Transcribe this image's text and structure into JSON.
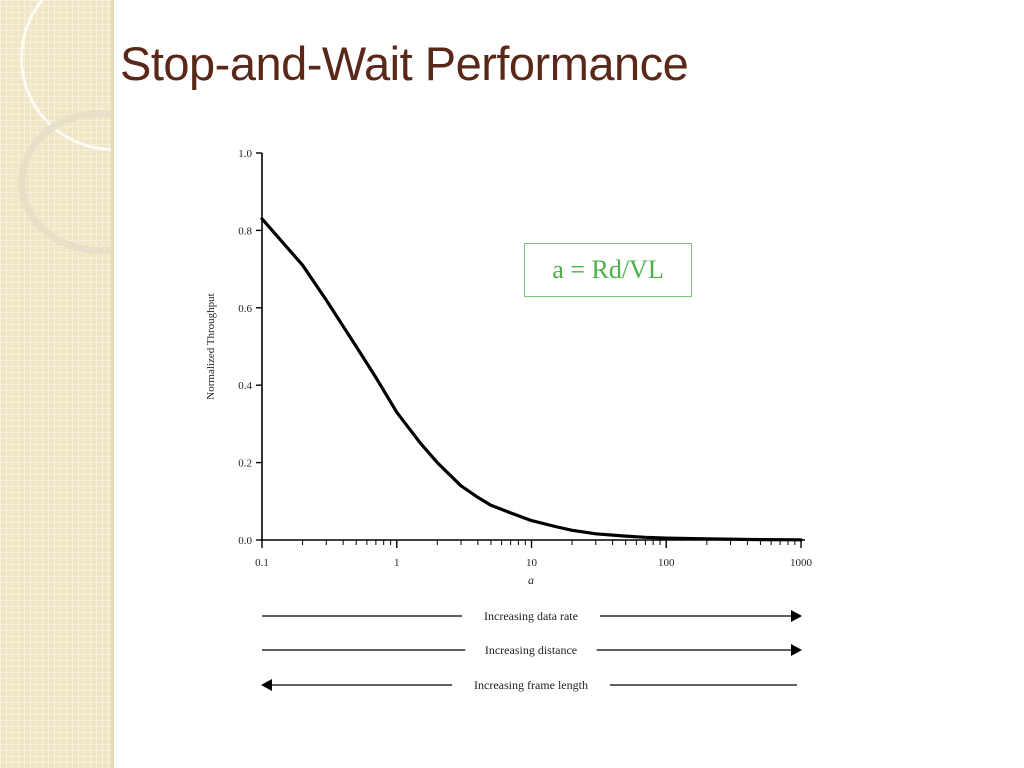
{
  "slide": {
    "title": "Stop-and-Wait Performance"
  },
  "colors": {
    "title": "#5a2818",
    "band": "#efe4c4",
    "formula": "#4fae4c",
    "formula_border": "#7dc47a",
    "curve": "#000000"
  },
  "chart_data": {
    "type": "line",
    "xlabel": "a",
    "ylabel": "Normalized Throughput",
    "xscale": "log",
    "xlim": [
      0.1,
      1000
    ],
    "ylim": [
      0.0,
      1.0
    ],
    "x_tick_labels": [
      "0.1",
      "1",
      "10",
      "100",
      "1000"
    ],
    "x_ticks": [
      0.1,
      1,
      10,
      100,
      1000
    ],
    "y_tick_labels": [
      "0.0",
      "0.2",
      "0.4",
      "0.6",
      "0.8",
      "1.0"
    ],
    "y_ticks": [
      0.0,
      0.2,
      0.4,
      0.6,
      0.8,
      1.0
    ],
    "grid": false,
    "annotation": "a = Rd/VL",
    "series": [
      {
        "x": [
          0.1,
          0.2,
          0.3,
          0.5,
          0.7,
          1,
          1.5,
          2,
          3,
          4,
          5,
          7,
          10,
          15,
          20,
          30,
          50,
          70,
          100,
          200,
          500,
          1000
        ],
        "y": [
          0.83,
          0.71,
          0.62,
          0.5,
          0.42,
          0.33,
          0.25,
          0.2,
          0.14,
          0.11,
          0.09,
          0.07,
          0.05,
          0.035,
          0.025,
          0.016,
          0.01,
          0.007,
          0.005,
          0.003,
          0.001,
          0.0005
        ]
      }
    ],
    "arrows": [
      {
        "label": "Increasing data rate",
        "direction": "right"
      },
      {
        "label": "Increasing distance",
        "direction": "right"
      },
      {
        "label": "Increasing frame length",
        "direction": "left"
      }
    ]
  }
}
